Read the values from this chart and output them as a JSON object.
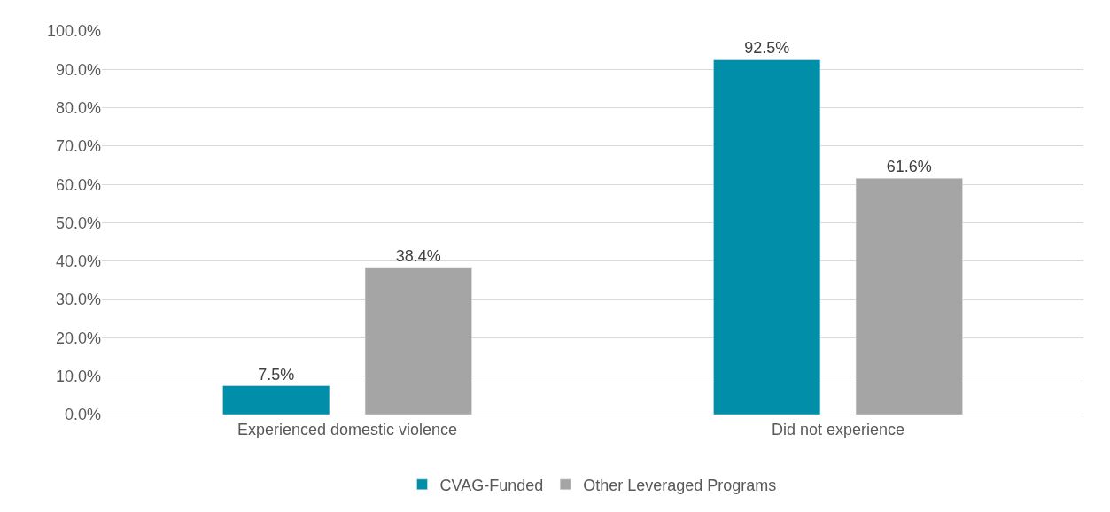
{
  "chart_data": {
    "type": "bar",
    "categories": [
      "Experienced domestic violence",
      "Did not experience"
    ],
    "series": [
      {
        "name": "CVAG-Funded",
        "color": "#008ea8",
        "values": [
          7.5,
          92.5
        ],
        "value_labels": [
          "7.5%",
          "92.5%"
        ]
      },
      {
        "name": "Other Leveraged Programs",
        "color": "#a5a5a5",
        "values": [
          38.4,
          61.6
        ],
        "value_labels": [
          "38.4%",
          "61.6%"
        ]
      }
    ],
    "ylim": [
      0,
      100
    ],
    "yticks": [
      {
        "value": 0,
        "label": "0.0%"
      },
      {
        "value": 10,
        "label": "10.0%"
      },
      {
        "value": 20,
        "label": "20.0%"
      },
      {
        "value": 30,
        "label": "30.0%"
      },
      {
        "value": 40,
        "label": "40.0%"
      },
      {
        "value": 50,
        "label": "50.0%"
      },
      {
        "value": 60,
        "label": "60.0%"
      },
      {
        "value": 70,
        "label": "70.0%"
      },
      {
        "value": 80,
        "label": "80.0%"
      },
      {
        "value": 90,
        "label": "90.0%"
      },
      {
        "value": 100,
        "label": "100.0%"
      }
    ],
    "grid": "y",
    "legend": "bottom"
  }
}
